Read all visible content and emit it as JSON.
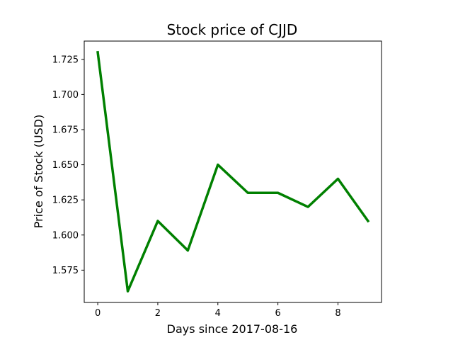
{
  "chart_data": {
    "type": "line",
    "title": "Stock price of CJJD",
    "xlabel": "Days since 2017-08-16",
    "ylabel": "Price of Stock (USD)",
    "x": [
      0,
      1,
      2,
      3,
      4,
      5,
      6,
      7,
      8,
      9
    ],
    "series": [
      {
        "values": [
          1.73,
          1.56,
          1.61,
          1.589,
          1.65,
          1.63,
          1.63,
          1.62,
          1.64,
          1.61
        ],
        "color": "#008000"
      }
    ],
    "xlim": [
      -0.45,
      9.45
    ],
    "ylim": [
      1.552,
      1.738
    ],
    "xticks": [
      0,
      2,
      4,
      6,
      8
    ],
    "xtick_labels": [
      "0",
      "2",
      "4",
      "6",
      "8"
    ],
    "yticks": [
      1.575,
      1.6,
      1.625,
      1.65,
      1.675,
      1.7,
      1.725
    ],
    "ytick_labels": [
      "1.575",
      "1.600",
      "1.625",
      "1.650",
      "1.675",
      "1.700",
      "1.725"
    ],
    "grid": false,
    "legend": false
  }
}
